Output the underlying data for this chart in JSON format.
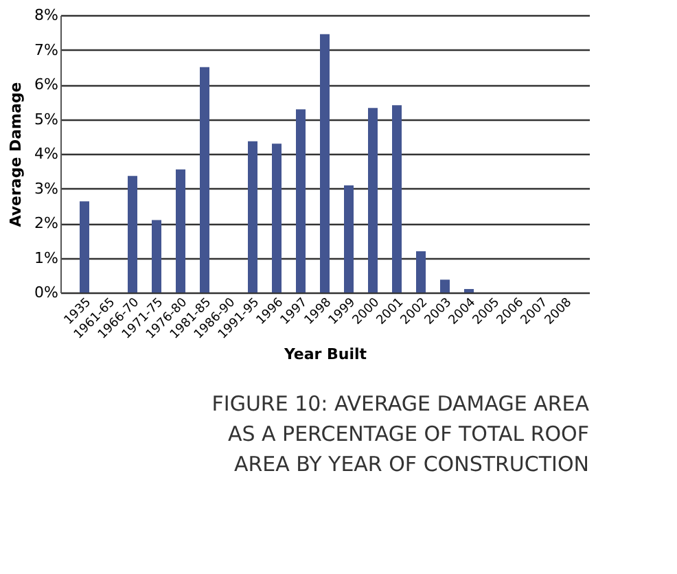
{
  "chart_data": {
    "type": "bar",
    "title": "FIGURE 10: AVERAGE DAMAGE AREA\nAS A PERCENTAGE OF TOTAL ROOF\nAREA BY YEAR OF CONSTRUCTION",
    "xlabel": "Year Built",
    "ylabel": "Average Damage",
    "categories": [
      "1935",
      "1961-65",
      "1966-70",
      "1971-75",
      "1976-80",
      "1981-85",
      "1986-90",
      "1991-95",
      "1996",
      "1997",
      "1998",
      "1999",
      "2000",
      "2001",
      "2002",
      "2003",
      "2004",
      "2005",
      "2006",
      "2007",
      "2008"
    ],
    "values": [
      2.63,
      0,
      3.36,
      2.09,
      3.55,
      6.5,
      0,
      4.36,
      4.29,
      5.28,
      7.45,
      3.09,
      5.32,
      5.4,
      1.19,
      0.37,
      0.1,
      0,
      0,
      0,
      0
    ],
    "color": "#435591",
    "ylim": [
      0,
      8
    ],
    "yticks": [
      {
        "value": 0,
        "label": "0%"
      },
      {
        "value": 1,
        "label": "1%"
      },
      {
        "value": 2,
        "label": "2%"
      },
      {
        "value": 3,
        "label": "3%"
      },
      {
        "value": 4,
        "label": "4%"
      },
      {
        "value": 5,
        "label": "5%"
      },
      {
        "value": 6,
        "label": "6%"
      },
      {
        "value": 7,
        "label": "7%"
      },
      {
        "value": 8,
        "label": "8%"
      }
    ],
    "grid": "y"
  }
}
